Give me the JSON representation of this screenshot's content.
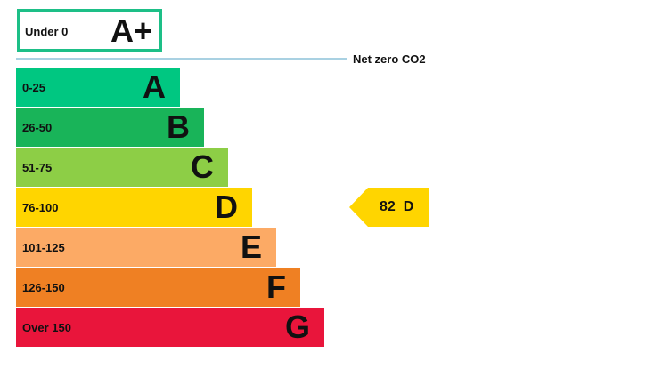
{
  "chart_data": {
    "type": "bar",
    "top_band": {
      "range": "Under 0",
      "letter": "A+",
      "color": "#1dbf87"
    },
    "reference_line": {
      "label": "Net zero CO2",
      "color": "#a9d1e2"
    },
    "bands": [
      {
        "range": "0-25",
        "letter": "A",
        "color": "#00c781"
      },
      {
        "range": "26-50",
        "letter": "B",
        "color": "#19b459"
      },
      {
        "range": "51-75",
        "letter": "C",
        "color": "#8dce46"
      },
      {
        "range": "76-100",
        "letter": "D",
        "color": "#ffd500"
      },
      {
        "range": "101-125",
        "letter": "E",
        "color": "#fcaa65"
      },
      {
        "range": "126-150",
        "letter": "F",
        "color": "#ef8023"
      },
      {
        "range": "Over 150",
        "letter": "G",
        "color": "#e9153b"
      }
    ],
    "current": {
      "value": 82,
      "letter": "D",
      "label": "82  D",
      "color": "#ffd500"
    }
  }
}
